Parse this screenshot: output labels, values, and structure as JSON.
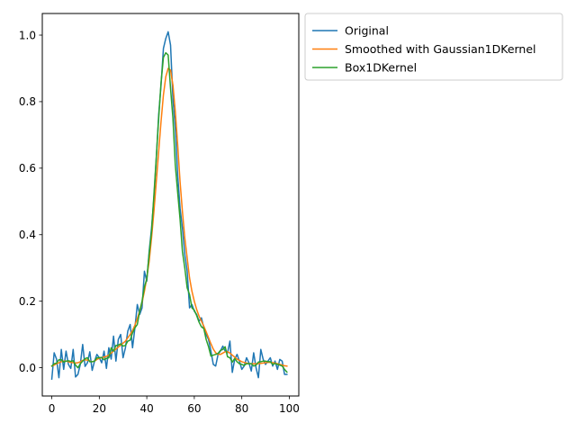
{
  "chart_data": {
    "type": "line",
    "title": "",
    "xlabel": "",
    "ylabel": "",
    "xlim": [
      -4,
      104
    ],
    "ylim": [
      -0.085,
      1.065
    ],
    "xticks": [
      0,
      20,
      40,
      60,
      80,
      100
    ],
    "xtick_labels": [
      "0",
      "20",
      "40",
      "60",
      "80",
      "100"
    ],
    "yticks": [
      0.0,
      0.2,
      0.4,
      0.6,
      0.8,
      1.0
    ],
    "ytick_labels": [
      "0.0",
      "0.2",
      "0.4",
      "0.6",
      "0.8",
      "1.0"
    ],
    "grid": false,
    "legend_position": "outside-top-right",
    "x": [
      0,
      1,
      2,
      3,
      4,
      5,
      6,
      7,
      8,
      9,
      10,
      11,
      12,
      13,
      14,
      15,
      16,
      17,
      18,
      19,
      20,
      21,
      22,
      23,
      24,
      25,
      26,
      27,
      28,
      29,
      30,
      31,
      32,
      33,
      34,
      35,
      36,
      37,
      38,
      39,
      40,
      41,
      42,
      43,
      44,
      45,
      46,
      47,
      48,
      49,
      50,
      51,
      52,
      53,
      54,
      55,
      56,
      57,
      58,
      59,
      60,
      61,
      62,
      63,
      64,
      65,
      66,
      67,
      68,
      69,
      70,
      71,
      72,
      73,
      74,
      75,
      76,
      77,
      78,
      79,
      80,
      81,
      82,
      83,
      84,
      85,
      86,
      87,
      88,
      89,
      90,
      91,
      92,
      93,
      94,
      95,
      96,
      97,
      98,
      99
    ],
    "series": [
      {
        "name": "Original",
        "color": "#1f77b4",
        "values": [
          -0.034,
          0.045,
          0.026,
          -0.03,
          0.055,
          -0.005,
          0.05,
          0.01,
          -0.002,
          0.055,
          -0.028,
          -0.02,
          0.01,
          0.07,
          0.004,
          0.015,
          0.048,
          -0.008,
          0.02,
          0.04,
          0.03,
          0.015,
          0.05,
          -0.002,
          0.06,
          0.026,
          0.095,
          0.02,
          0.085,
          0.1,
          0.03,
          0.06,
          0.11,
          0.13,
          0.06,
          0.12,
          0.19,
          0.16,
          0.18,
          0.29,
          0.26,
          0.35,
          0.42,
          0.51,
          0.63,
          0.76,
          0.85,
          0.96,
          0.99,
          1.01,
          0.97,
          0.81,
          0.72,
          0.58,
          0.48,
          0.42,
          0.34,
          0.29,
          0.18,
          0.19,
          0.17,
          0.16,
          0.14,
          0.15,
          0.12,
          0.1,
          0.085,
          0.05,
          0.01,
          0.005,
          0.04,
          0.05,
          0.065,
          0.05,
          0.045,
          0.08,
          -0.014,
          0.025,
          0.04,
          0.02,
          -0.005,
          0.005,
          0.03,
          0.015,
          -0.01,
          0.045,
          0.0,
          -0.03,
          0.055,
          0.025,
          0.01,
          0.02,
          0.03,
          0.005,
          0.02,
          -0.005,
          0.025,
          0.02,
          -0.02,
          -0.02
        ]
      },
      {
        "name": "Smoothed with Gaussian1DKernel",
        "color": "#ff7f0e",
        "values": [
          0.005,
          0.008,
          0.012,
          0.015,
          0.018,
          0.02,
          0.02,
          0.018,
          0.016,
          0.015,
          0.014,
          0.015,
          0.018,
          0.022,
          0.024,
          0.023,
          0.02,
          0.018,
          0.02,
          0.025,
          0.028,
          0.03,
          0.032,
          0.034,
          0.038,
          0.044,
          0.05,
          0.056,
          0.062,
          0.068,
          0.074,
          0.08,
          0.09,
          0.1,
          0.112,
          0.128,
          0.148,
          0.17,
          0.196,
          0.23,
          0.27,
          0.32,
          0.39,
          0.47,
          0.56,
          0.65,
          0.74,
          0.82,
          0.875,
          0.9,
          0.895,
          0.85,
          0.77,
          0.67,
          0.56,
          0.47,
          0.39,
          0.33,
          0.27,
          0.23,
          0.2,
          0.175,
          0.155,
          0.14,
          0.125,
          0.108,
          0.09,
          0.072,
          0.056,
          0.045,
          0.04,
          0.04,
          0.044,
          0.048,
          0.048,
          0.044,
          0.038,
          0.032,
          0.026,
          0.022,
          0.018,
          0.016,
          0.014,
          0.012,
          0.012,
          0.012,
          0.012,
          0.012,
          0.013,
          0.014,
          0.015,
          0.016,
          0.016,
          0.015,
          0.014,
          0.012,
          0.01,
          0.008,
          0.006,
          0.005
        ]
      },
      {
        "name": "Box1DKernel",
        "color": "#2ca02c",
        "values": [
          0.005,
          0.012,
          0.014,
          0.024,
          0.024,
          0.017,
          0.02,
          0.021,
          0.019,
          0.021,
          0.008,
          0.0,
          0.012,
          0.02,
          0.027,
          0.03,
          0.018,
          0.018,
          0.02,
          0.03,
          0.03,
          0.031,
          0.024,
          0.028,
          0.03,
          0.06,
          0.05,
          0.067,
          0.068,
          0.072,
          0.065,
          0.067,
          0.08,
          0.083,
          0.105,
          0.12,
          0.13,
          0.17,
          0.2,
          0.243,
          0.267,
          0.343,
          0.41,
          0.52,
          0.633,
          0.75,
          0.857,
          0.933,
          0.947,
          0.94,
          0.84,
          0.75,
          0.61,
          0.527,
          0.447,
          0.35,
          0.3,
          0.24,
          0.22,
          0.18,
          0.173,
          0.157,
          0.137,
          0.123,
          0.118,
          0.085,
          0.063,
          0.035,
          0.038,
          0.04,
          0.043,
          0.052,
          0.055,
          0.063,
          0.033,
          0.03,
          0.017,
          0.028,
          0.018,
          0.012,
          0.01,
          0.007,
          0.012,
          0.012,
          0.012,
          0.005,
          0.008,
          0.017,
          0.018,
          0.02,
          0.02,
          0.018,
          0.018,
          0.01,
          0.013,
          0.01,
          0.008,
          0.005,
          -0.005,
          -0.013
        ]
      }
    ]
  }
}
